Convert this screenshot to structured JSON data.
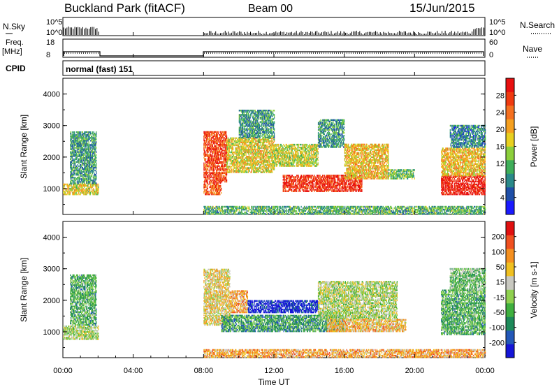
{
  "header": {
    "station": "Buckland Park (fitACF)",
    "beam": "Beam 00",
    "date": "15/Jun/2015"
  },
  "top_panels": {
    "nsky_label": "N.Sky",
    "nsky_ticks": [
      "10^5",
      "10^0"
    ],
    "nsearch_label": "N.Search",
    "nsearch_ticks": [
      "10^5",
      "10^0"
    ],
    "freq_label": "Freq.",
    "freq_unit": "[MHz]",
    "freq_ticks": [
      "18",
      "8"
    ],
    "nave_label": "Nave",
    "nave_ticks": [
      "60",
      "0"
    ],
    "cpid_label": "CPID",
    "cpid_value": "normal (fast) 151"
  },
  "chart_data": [
    {
      "type": "heatmap",
      "panel": "power",
      "title": "",
      "xlabel": "Time UT",
      "ylabel": "Slant Range [km]",
      "xlim": [
        "00:00",
        "24:00"
      ],
      "ylim": [
        180,
        4500
      ],
      "x_ticks": [
        "00:00",
        "04:00",
        "08:00",
        "12:00",
        "16:00",
        "20:00",
        "00:00"
      ],
      "y_ticks": [
        "1000",
        "2000",
        "3000",
        "4000"
      ],
      "colorbar": {
        "label": "Power [dB]",
        "ticks": [
          "4",
          "8",
          "12",
          "16",
          "20",
          "24",
          "28"
        ],
        "colors": [
          "#1a1aff",
          "#1f4fa8",
          "#2a8a8a",
          "#3fae5a",
          "#8ccf3c",
          "#e8d020",
          "#f5a020",
          "#f57020",
          "#f03a10",
          "#e81010"
        ]
      },
      "data_gaps": [
        [
          2.05,
          7.95
        ]
      ],
      "regions": [
        {
          "t": [
            0.0,
            2.0
          ],
          "r": [
            800,
            1150
          ],
          "level": 0.55
        },
        {
          "t": [
            0.4,
            1.9
          ],
          "r": [
            1150,
            2800
          ],
          "level": 0.3
        },
        {
          "t": [
            8.0,
            9.3
          ],
          "r": [
            1200,
            2800
          ],
          "level": 0.85
        },
        {
          "t": [
            8.0,
            9.0
          ],
          "r": [
            800,
            1200
          ],
          "level": 0.8
        },
        {
          "t": [
            9.3,
            12.0
          ],
          "r": [
            1500,
            2600
          ],
          "level": 0.55
        },
        {
          "t": [
            10.0,
            12.0
          ],
          "r": [
            2600,
            3500
          ],
          "level": 0.3
        },
        {
          "t": [
            12.0,
            14.5
          ],
          "r": [
            1700,
            2400
          ],
          "level": 0.5
        },
        {
          "t": [
            12.5,
            17.0
          ],
          "r": [
            900,
            1400
          ],
          "level": 0.9
        },
        {
          "t": [
            14.5,
            16.0
          ],
          "r": [
            2300,
            3200
          ],
          "level": 0.3
        },
        {
          "t": [
            16.0,
            18.5
          ],
          "r": [
            1300,
            2400
          ],
          "level": 0.6
        },
        {
          "t": [
            18.5,
            20.0
          ],
          "r": [
            1300,
            1600
          ],
          "level": 0.4
        },
        {
          "t": [
            21.5,
            24.0
          ],
          "r": [
            800,
            1400
          ],
          "level": 0.95
        },
        {
          "t": [
            21.5,
            24.0
          ],
          "r": [
            1400,
            2300
          ],
          "level": 0.6
        },
        {
          "t": [
            22.0,
            24.0
          ],
          "r": [
            2300,
            3000
          ],
          "level": 0.25
        },
        {
          "t": [
            8.0,
            24.0
          ],
          "r": [
            180,
            420
          ],
          "level": 0.35
        }
      ]
    },
    {
      "type": "heatmap",
      "panel": "velocity",
      "title": "",
      "xlabel": "Time UT",
      "ylabel": "Slant Range [km]",
      "xlim": [
        "00:00",
        "24:00"
      ],
      "ylim": [
        180,
        4500
      ],
      "x_ticks": [
        "00:00",
        "04:00",
        "08:00",
        "12:00",
        "16:00",
        "20:00",
        "00:00"
      ],
      "y_ticks": [
        "1000",
        "2000",
        "3000",
        "4000"
      ],
      "colorbar": {
        "label": "Velocity [m s-1]",
        "ticks": [
          "200",
          "100",
          "50",
          "15",
          "-15",
          "-50",
          "-100",
          "-200"
        ],
        "colors": [
          "#1515d8",
          "#2358b8",
          "#1e8a5a",
          "#3fb03f",
          "#8fd04f",
          "#c8c8c0",
          "#f0c020",
          "#f59020",
          "#f05020",
          "#e01010"
        ]
      },
      "data_gaps": [
        [
          2.05,
          7.95
        ]
      ],
      "regions": [
        {
          "t": [
            0.0,
            2.0
          ],
          "r": [
            750,
            1200
          ],
          "level": 0.5
        },
        {
          "t": [
            0.4,
            1.9
          ],
          "r": [
            1200,
            2800
          ],
          "level": 0.35
        },
        {
          "t": [
            8.0,
            9.5
          ],
          "r": [
            1200,
            3000
          ],
          "level": 0.6
        },
        {
          "t": [
            9.5,
            10.5
          ],
          "r": [
            1600,
            2300
          ],
          "level": 0.7
        },
        {
          "t": [
            10.5,
            14.5
          ],
          "r": [
            1600,
            2000
          ],
          "level": 0.05
        },
        {
          "t": [
            9.0,
            16.0
          ],
          "r": [
            1000,
            1500
          ],
          "level": 0.3
        },
        {
          "t": [
            14.5,
            19.0
          ],
          "r": [
            1400,
            2600
          ],
          "level": 0.5
        },
        {
          "t": [
            15.0,
            19.5
          ],
          "r": [
            1000,
            1400
          ],
          "level": 0.65
        },
        {
          "t": [
            21.5,
            24.0
          ],
          "r": [
            900,
            2300
          ],
          "level": 0.35
        },
        {
          "t": [
            22.0,
            24.0
          ],
          "r": [
            2300,
            3000
          ],
          "level": 0.4
        },
        {
          "t": [
            8.0,
            24.0
          ],
          "r": [
            180,
            420
          ],
          "level": 0.7
        }
      ]
    }
  ]
}
